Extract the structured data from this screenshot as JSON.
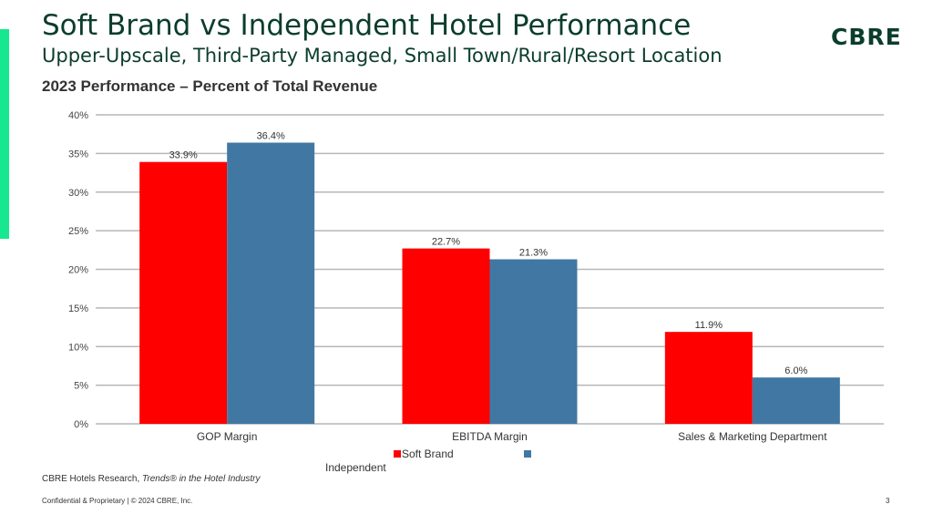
{
  "header": {
    "title": "Soft Brand vs Independent Hotel Performance",
    "subtitle": "Upper-Upscale, Third-Party Managed, Small Town/Rural/Resort Location",
    "logo_text": "CBRE"
  },
  "colors": {
    "brand_green": "#0b3d2c",
    "accent_green": "#17e88f",
    "soft_brand": "#ff0000",
    "independent": "#4178a3"
  },
  "chart_data": {
    "type": "bar",
    "title": "2023 Performance – Percent of Total Revenue",
    "categories": [
      "GOP Margin",
      "EBITDA Margin",
      "Sales & Marketing Department"
    ],
    "series": [
      {
        "name": "Soft Brand",
        "values": [
          33.9,
          22.7,
          11.9
        ],
        "labels": [
          "33.9%",
          "22.7%",
          "11.9%"
        ],
        "color": "#ff0000"
      },
      {
        "name": "Independent",
        "values": [
          36.4,
          21.3,
          6.0
        ],
        "labels": [
          "36.4%",
          "21.3%",
          "6.0%"
        ],
        "color": "#4178a3"
      }
    ],
    "y_ticks": [
      "0%",
      "5%",
      "10%",
      "15%",
      "20%",
      "25%",
      "30%",
      "35%",
      "40%"
    ],
    "ylim": [
      0,
      40
    ],
    "grid": true,
    "legend_position": "bottom"
  },
  "source": {
    "prefix": "CBRE Hotels Research, ",
    "publication": "Trends® in the Hotel Industry"
  },
  "footer": {
    "confidential": "Confidential & Proprietary | © 2024 CBRE, Inc.",
    "page_number": "3"
  }
}
